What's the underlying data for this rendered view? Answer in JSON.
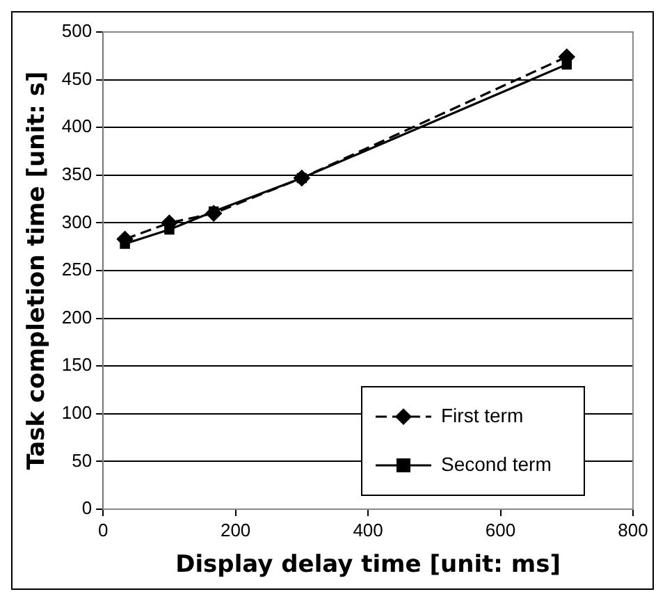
{
  "chart_data": {
    "type": "line",
    "xlabel": "Display delay time [unit: ms]",
    "ylabel": "Task completion time [unit: s]",
    "xlim": [
      0,
      800
    ],
    "xticks": [
      0,
      200,
      400,
      600,
      800
    ],
    "ylim": [
      0,
      500
    ],
    "yticks": [
      0,
      50,
      100,
      150,
      200,
      250,
      300,
      350,
      400,
      450,
      500
    ],
    "grid": "y",
    "legend": "bottom right",
    "series": [
      {
        "name": "First term",
        "color": "#000000",
        "marker": "diamond",
        "line_style": "dashed",
        "x": [
          33,
          100,
          167,
          300,
          700
        ],
        "values": [
          283,
          300,
          310,
          347,
          474
        ]
      },
      {
        "name": "Second term",
        "color": "#000000",
        "marker": "square",
        "line_style": "solid",
        "x": [
          33,
          100,
          167,
          300,
          700
        ],
        "values": [
          278,
          293,
          312,
          347,
          466
        ]
      }
    ]
  }
}
